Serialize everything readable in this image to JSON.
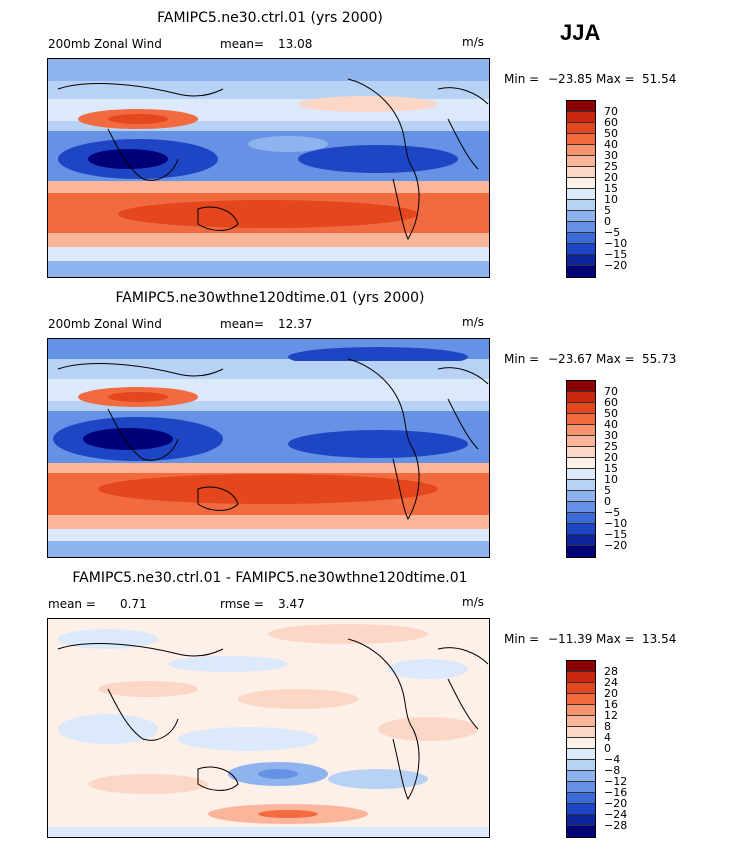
{
  "season": "JJA",
  "colors": {
    "panel12": [
      "#8b0000",
      "#c8280e",
      "#e4471d",
      "#f26a3f",
      "#f7926c",
      "#fbb59a",
      "#fdd7c5",
      "#fdf0e8",
      "#dce9fb",
      "#b8d2f6",
      "#8fb3ef",
      "#6692e6",
      "#3b6bd9",
      "#1e45c4",
      "#0c239d",
      "#000078"
    ],
    "diff": [
      "#8b0000",
      "#c8280e",
      "#e4471d",
      "#f26a3f",
      "#f7926c",
      "#fbb59a",
      "#fdd7c5",
      "#fdf0e8",
      "#dce9fb",
      "#b8d2f6",
      "#8fb3ef",
      "#6692e6",
      "#3b6bd9",
      "#1e45c4",
      "#0c239d",
      "#000078"
    ]
  },
  "panels": [
    {
      "title": "FAMIPC5.ne30.ctrl.01 (yrs 2000)",
      "left_label": "200mb Zonal Wind",
      "stat_label": "mean=",
      "stat_value": "13.08",
      "units": "m/s",
      "min_label": "Min =",
      "min_value": "−23.85",
      "max_label": "Max =",
      "max_value": "51.54",
      "legend_labels": [
        "70",
        "60",
        "50",
        "40",
        "30",
        "25",
        "20",
        "15",
        "10",
        "5",
        "0",
        "−5",
        "−10",
        "−15",
        "−20"
      ]
    },
    {
      "title": "FAMIPC5.ne30wthne120dtime.01 (yrs 2000)",
      "left_label": "200mb Zonal Wind",
      "stat_label": "mean=",
      "stat_value": "12.37",
      "units": "m/s",
      "min_label": "Min =",
      "min_value": "−23.67",
      "max_label": "Max =",
      "max_value": "55.73",
      "legend_labels": [
        "70",
        "60",
        "50",
        "40",
        "30",
        "25",
        "20",
        "15",
        "10",
        "5",
        "0",
        "−5",
        "−10",
        "−15",
        "−20"
      ]
    },
    {
      "title": "FAMIPC5.ne30.ctrl.01 - FAMIPC5.ne30wthne120dtime.01",
      "left_label": "mean =",
      "left_value": "0.71",
      "stat_label": "rmse =",
      "stat_value": "3.47",
      "units": "m/s",
      "min_label": "Min =",
      "min_value": "−11.39",
      "max_label": "Max =",
      "max_value": "13.54",
      "legend_labels": [
        "28",
        "24",
        "20",
        "16",
        "12",
        "8",
        "4",
        "0",
        "−4",
        "−8",
        "−12",
        "−16",
        "−20",
        "−24",
        "−28"
      ]
    }
  ]
}
